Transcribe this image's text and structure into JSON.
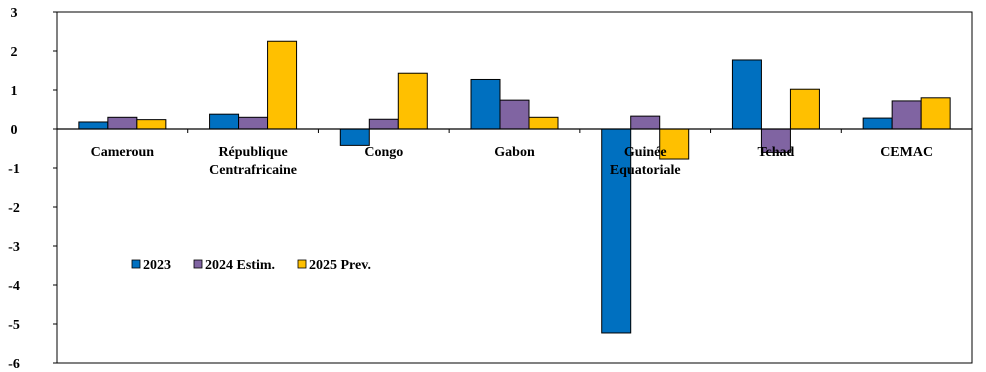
{
  "chart_data": {
    "type": "bar",
    "title": "",
    "xlabel": "",
    "ylabel": "",
    "ylim": [
      -6,
      3
    ],
    "yticks": [
      3,
      2,
      1,
      0,
      -1,
      -2,
      -3,
      -4,
      -5,
      -6
    ],
    "grid": false,
    "legend_position": "middle-left",
    "categories": [
      [
        "Cameroun"
      ],
      [
        "République",
        "Centrafricaine"
      ],
      [
        "Congo"
      ],
      [
        "Gabon"
      ],
      [
        "Guinée",
        "Equatoriale"
      ],
      [
        "Tchad"
      ],
      [
        "CEMAC"
      ]
    ],
    "series": [
      {
        "name": "2023",
        "color": "#0070c0",
        "values": [
          0.18,
          0.38,
          -0.42,
          1.27,
          -5.23,
          1.77,
          0.28
        ]
      },
      {
        "name": "2024 Estim.",
        "color": "#8064a2",
        "values": [
          0.3,
          0.3,
          0.25,
          0.74,
          0.33,
          -0.6,
          0.72
        ]
      },
      {
        "name": "2025 Prev.",
        "color": "#ffc000",
        "values": [
          0.24,
          2.25,
          1.43,
          0.3,
          -0.77,
          1.02,
          0.8
        ]
      }
    ]
  }
}
